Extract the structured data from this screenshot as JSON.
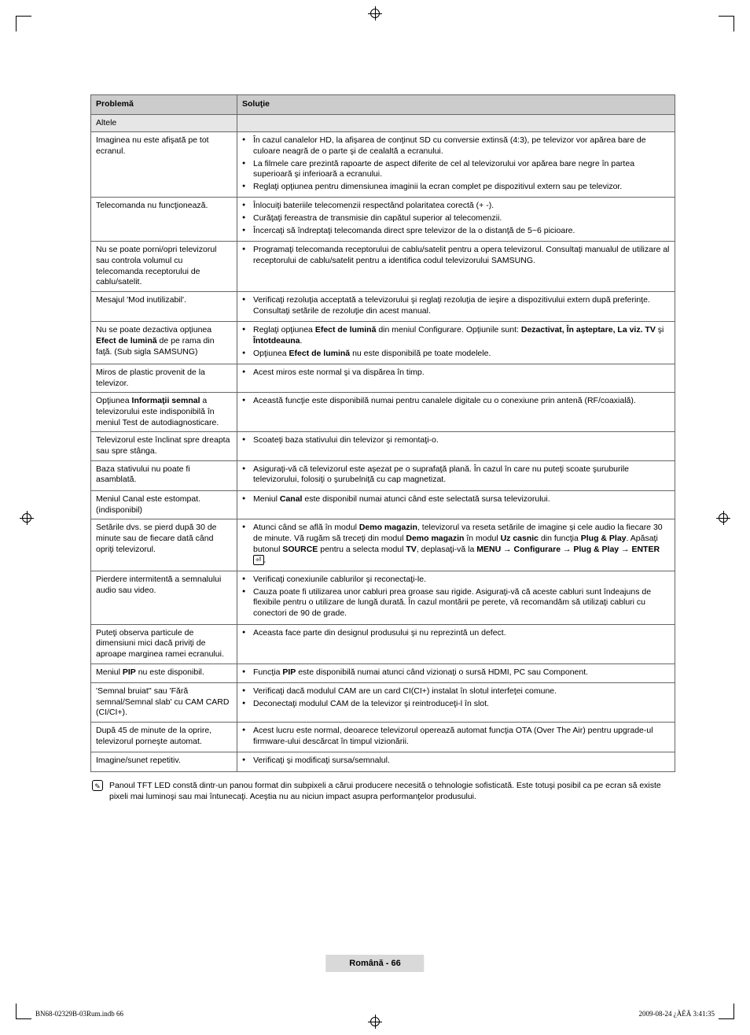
{
  "headers": {
    "problem": "Problemă",
    "solution": "Soluţie"
  },
  "subheader": "Altele",
  "rows": [
    {
      "problem": "Imaginea nu este afişată pe tot ecranul.",
      "solutions": [
        "În cazul canalelor HD, la afişarea de conţinut SD cu conversie extinsă (4:3), pe televizor vor apărea bare de culoare neagră de o parte şi de cealaltă a ecranului.",
        "La filmele care prezintă rapoarte de aspect diferite de cel al televizorului vor apărea bare negre în partea superioară şi inferioară a ecranului.",
        "Reglaţi opţiunea pentru dimensiunea imaginii la ecran complet pe dispozitivul extern sau pe televizor."
      ]
    },
    {
      "problem": "Telecomanda nu funcţionează.",
      "solutions": [
        "Înlocuiţi bateriile telecomenzii respectând polaritatea corectă (+ -).",
        "Curăţaţi fereastra de transmisie din capătul superior al telecomenzii.",
        "Încercaţi să îndreptaţi telecomanda direct spre televizor de la o distanţă de 5~6 picioare."
      ]
    },
    {
      "problem": "Nu se poate porni/opri televizorul sau controla volumul cu telecomanda receptorului de cablu/satelit.",
      "solutions": [
        "Programaţi telecomanda receptorului de cablu/satelit pentru a opera televizorul. Consultaţi manualul de utilizare al receptorului de cablu/satelit pentru a identifica codul televizorului SAMSUNG."
      ]
    },
    {
      "problem": "Mesajul 'Mod inutilizabil'.",
      "solutions": [
        "Verificaţi rezoluţia acceptată a televizorului şi reglaţi rezoluţia de ieşire a dispozitivului extern după preferinţe. Consultaţi setările de rezoluţie din acest manual."
      ]
    },
    {
      "problem_html": "Nu se poate dezactiva opţiunea <b>Efect de lumină</b> de pe rama din faţă. (Sub sigla SAMSUNG)",
      "solutions_html": [
        "Reglaţi opţiunea <b>Efect de lumină</b> din meniul Configurare. Opţiunile sunt: <b>Dezactivat, În aşteptare, La viz. TV</b> şi <b>Întotdeauna</b>.",
        "Opţiunea <b>Efect de lumină</b> nu este disponibilă pe toate modelele."
      ]
    },
    {
      "problem": "Miros de plastic provenit de la televizor.",
      "solutions": [
        "Acest miros este normal şi va dispărea în timp."
      ]
    },
    {
      "problem_html": "Opţiunea <b>Informaţii semnal</b> a televizorului este indisponibilă în meniul Test de autodiagnosticare.",
      "solutions": [
        "Această funcţie este disponibilă numai pentru canalele digitale cu o conexiune prin antenă (RF/coaxială)."
      ]
    },
    {
      "problem": "Televizorul este înclinat spre dreapta sau spre stânga.",
      "solutions": [
        "Scoateţi baza stativului din televizor şi remontaţi-o."
      ]
    },
    {
      "problem": "Baza stativului nu poate fi asamblată.",
      "solutions": [
        "Asiguraţi-vă că televizorul este aşezat pe o suprafaţă plană. În cazul în care nu puteţi scoate şuruburile televizorului, folosiţi o şurubelniţă cu cap magnetizat."
      ]
    },
    {
      "problem": "Meniul Canal este estompat. (indisponibil)",
      "solutions_html": [
        "Meniul <b>Canal</b> este disponibil numai atunci când este selectată sursa televizorului."
      ]
    },
    {
      "problem": "Setările dvs. se pierd după 30 de minute sau de fiecare dată când opriţi televizorul.",
      "solutions_html": [
        "Atunci când se află în modul <b>Demo magazin</b>, televizorul va reseta setările de imagine şi cele audio la fiecare 30 de minute. Vă rugăm să treceţi din modul <b>Demo magazin</b> în modul <b>Uz casnic</b> din funcţia <b>Plug & Play</b>. Apăsaţi butonul <b>SOURCE</b> pentru a selecta modul <b>TV</b>, deplasaţi-vă la <b>MENU → Configurare → Plug & Play → ENTER</b> <span class=\"enter-icon\">⏎</span>."
      ]
    },
    {
      "problem": "Pierdere intermitentă a semnalului audio sau video.",
      "solutions": [
        "Verificaţi conexiunile cablurilor şi reconectaţi-le.",
        "Cauza poate fi utilizarea unor cabluri prea groase sau rigide. Asiguraţi-vă că aceste cabluri sunt îndeajuns de flexibile pentru o utilizare de lungă durată. În cazul montării pe perete, vă recomandăm să utilizaţi cabluri cu conectori de 90 de grade."
      ]
    },
    {
      "problem": "Puteţi observa particule de dimensiuni mici dacă priviţi de aproape marginea ramei ecranului.",
      "solutions": [
        "Aceasta face parte din designul produsului şi nu reprezintă un defect."
      ]
    },
    {
      "problem_html": "Meniul <b>PIP</b> nu este disponibil.",
      "solutions_html": [
        "Funcţia <b>PIP</b> este disponibilă numai atunci când vizionaţi o sursă HDMI, PC sau Component."
      ]
    },
    {
      "problem": "'Semnal bruiat'' sau 'Fără semnal/Semnal slab' cu CAM CARD (CI/CI+).",
      "solutions": [
        "Verificaţi dacă modulul CAM are un card CI(CI+) instalat în slotul interfeţei comune.",
        "Deconectaţi modulul CAM de la televizor şi reintroduceţi-l în slot."
      ]
    },
    {
      "problem": "După 45 de minute de la oprire, televizorul porneşte automat.",
      "solutions": [
        "Acest lucru este normal, deoarece televizorul operează automat funcţia OTA (Over The Air) pentru upgrade-ul firmware-ului descărcat în timpul vizionării."
      ]
    },
    {
      "problem": "Imagine/sunet repetitiv.",
      "solutions": [
        "Verificaţi şi modificaţi sursa/semnalul."
      ]
    }
  ],
  "footnote": "Panoul TFT LED constă dintr-un panou format din subpixeli a cărui producere necesită o tehnologie sofisticată. Este totuşi posibil ca pe ecran să existe pixeli mai luminoşi sau mai întunecaţi. Aceştia nu au niciun impact asupra performanţelor produsului.",
  "page_footer": "Română - 66",
  "print_meta_left": "BN68-02329B-03Rum.indb   66",
  "print_meta_right": "2009-08-24   ¿ÀÈÄ 3:41:35"
}
